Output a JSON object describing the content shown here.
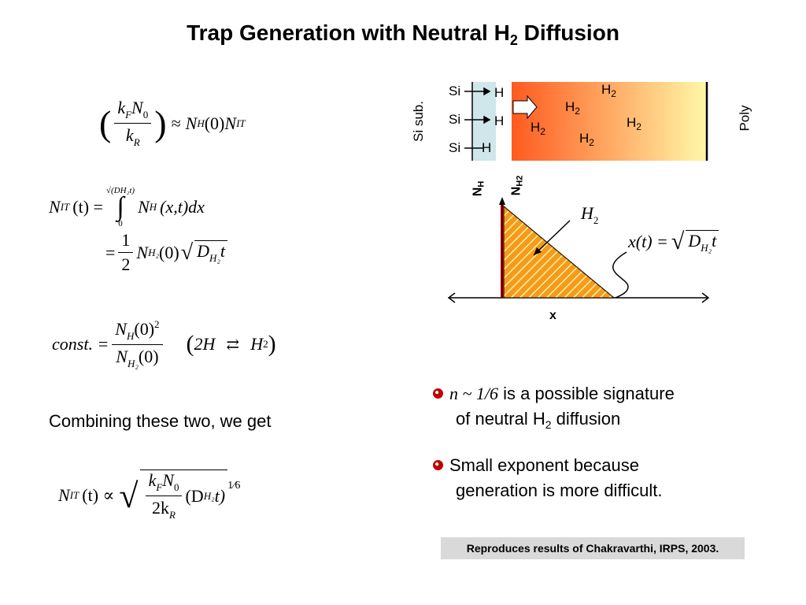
{
  "title": {
    "main": "Trap Generation with Neutral H",
    "sub": "2",
    "rest": " Diffusion"
  },
  "eq1": {
    "kF": "k",
    "kF_sub": "F",
    "N0": "N",
    "N0_sub": "0",
    "kR": "k",
    "kR_sub": "R",
    "approx": "≈",
    "NH": "N",
    "NH_sub": "H",
    "arg0": "(0)",
    "NIT": "N",
    "NIT_sub": "IT"
  },
  "eq2": {
    "lhs": "N",
    "lhs_sub": "IT",
    "lhs_arg": "(t) =",
    "int_upper": "√(DH₂t)",
    "int_lower": "0",
    "integrand": "N",
    "integrand_sub": "H",
    "integrand_arg": "(x,t)dx",
    "line2_eq": "=",
    "half_num": "1",
    "half_den": "2",
    "NH2": "N",
    "NH2_sub": "H₂",
    "arg0": "(0)",
    "D": "D",
    "D_sub": "H₂",
    "t": "t"
  },
  "eq3": {
    "lhs": "const. =",
    "num": "N",
    "num_sub": "H",
    "num_arg": "(0)",
    "num_exp": "2",
    "den": "N",
    "den_sub": "H₂",
    "den_arg": "(0)",
    "reaction_left": "2H",
    "reaction_arrow": "⇄",
    "reaction_right": "H",
    "reaction_right_sub": "2"
  },
  "combining_text": "Combining these two, we get",
  "eq4": {
    "lhs": "N",
    "lhs_sub": "IT",
    "lhs_arg": "(t) ∝",
    "num": "k",
    "num_sub": "F",
    "num2": "N",
    "num2_sub": "0",
    "den": "2k",
    "den_sub": "R",
    "D": "(D",
    "D_sub": "H₂",
    "t": "t)",
    "exp_num": "1",
    "exp_den": "6"
  },
  "diagram_top": {
    "si_labels": [
      "Si",
      "Si",
      "Si"
    ],
    "h_labels": [
      "H",
      "H",
      "H"
    ],
    "h2_labels": [
      "H",
      "H",
      "H",
      "H",
      "H"
    ],
    "h2_sub": "2",
    "si_sub_label": "Si sub.",
    "poly_label": "Poly"
  },
  "diagram_plot": {
    "nh_label": "N",
    "nh_sub": "H",
    "nh2_label": "N",
    "nh2_sub": "H2",
    "h2_label": "H",
    "h2_sub": "2",
    "x_label": "x",
    "xt_eq": "x(t) =",
    "xt_D": "D",
    "xt_D_sub": "H₂",
    "xt_t": "t"
  },
  "bullets": [
    {
      "math": "n ~ 1/6",
      "text": " is a possible signature",
      "line2": "of neutral H",
      "line2_sub": "2",
      "line2_rest": " diffusion"
    },
    {
      "text": "Small exponent because",
      "line2": "generation is more difficult."
    }
  ],
  "note": "Reproduces results of Chakravarthi, IRPS, 2003.",
  "colors": {
    "accent": "#c00000",
    "gradient_start": "#ff5a1f",
    "gradient_end": "#fff8a8",
    "substrate": "#cfe6ea",
    "hatch": "#f59a1c"
  }
}
